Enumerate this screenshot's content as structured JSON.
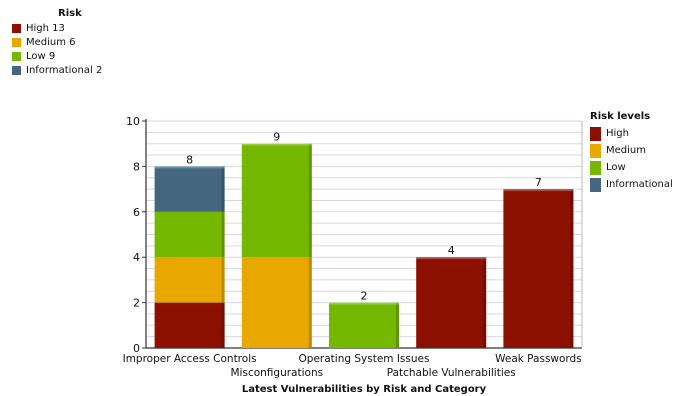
{
  "colors": {
    "High": "#8b1000",
    "Medium": "#e8a800",
    "Low": "#74b800",
    "Informational": "#44667f"
  },
  "summary_legend": {
    "title": "Risk",
    "items": [
      {
        "label": "High 13",
        "level": "High"
      },
      {
        "label": "Medium 6",
        "level": "Medium"
      },
      {
        "label": "Low 9",
        "level": "Low"
      },
      {
        "label": "Informational 2",
        "level": "Informational"
      }
    ]
  },
  "chart_data": {
    "type": "bar",
    "stacked": true,
    "title": "Latest Vulnerabilities by Risk and Category",
    "xlabel": "",
    "ylabel": "",
    "ylim": [
      0,
      10
    ],
    "yticks": [
      0,
      2,
      4,
      6,
      8,
      10
    ],
    "grid": true,
    "legend_title": "Risk levels",
    "legend_position": "right",
    "categories": [
      "Improper Access Controls",
      "Misconfigurations",
      "Operating System Issues",
      "Patchable Vulnerabilities",
      "Weak Passwords"
    ],
    "series": [
      {
        "name": "High",
        "values": [
          2,
          0,
          0,
          4,
          7
        ]
      },
      {
        "name": "Medium",
        "values": [
          2,
          4,
          0,
          0,
          0
        ]
      },
      {
        "name": "Low",
        "values": [
          2,
          5,
          2,
          0,
          0
        ]
      },
      {
        "name": "Informational",
        "values": [
          2,
          0,
          0,
          0,
          0
        ]
      }
    ],
    "totals": [
      8,
      9,
      2,
      4,
      7
    ]
  }
}
